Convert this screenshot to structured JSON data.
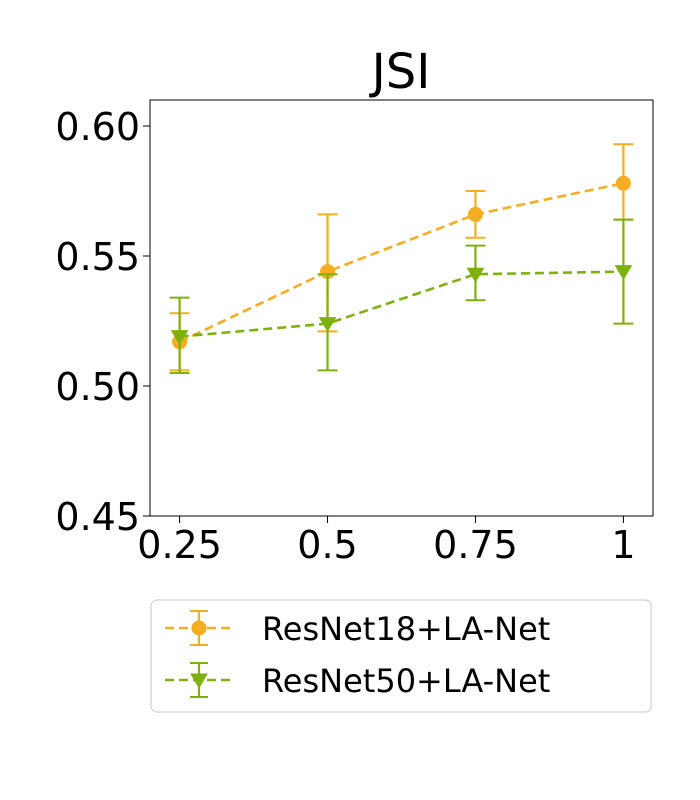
{
  "chart_data": {
    "type": "line",
    "title": "JSI",
    "xlabel": "",
    "ylabel": "",
    "categories": [
      "0.25",
      "0.5",
      "0.75",
      "1"
    ],
    "x": [
      0.25,
      0.5,
      0.75,
      1.0
    ],
    "ylim": [
      0.45,
      0.61
    ],
    "yticks": [
      "0.45",
      "0.50",
      "0.55",
      "0.60"
    ],
    "ytick_values": [
      0.45,
      0.5,
      0.55,
      0.6
    ],
    "grid": false,
    "legend_position": "bottom",
    "series": [
      {
        "name": "ResNet18+LA-Net",
        "color": "#f5ad22",
        "marker": "circle",
        "values": [
          0.517,
          0.544,
          0.566,
          0.578
        ],
        "err_low": [
          0.506,
          0.521,
          0.557,
          0.564
        ],
        "err_high": [
          0.528,
          0.566,
          0.575,
          0.593
        ]
      },
      {
        "name": "ResNet50+LA-Net",
        "color": "#7fb10e",
        "marker": "triangle-down",
        "values": [
          0.519,
          0.524,
          0.543,
          0.544
        ],
        "err_low": [
          0.505,
          0.506,
          0.533,
          0.524
        ],
        "err_high": [
          0.534,
          0.543,
          0.554,
          0.564
        ]
      }
    ]
  }
}
